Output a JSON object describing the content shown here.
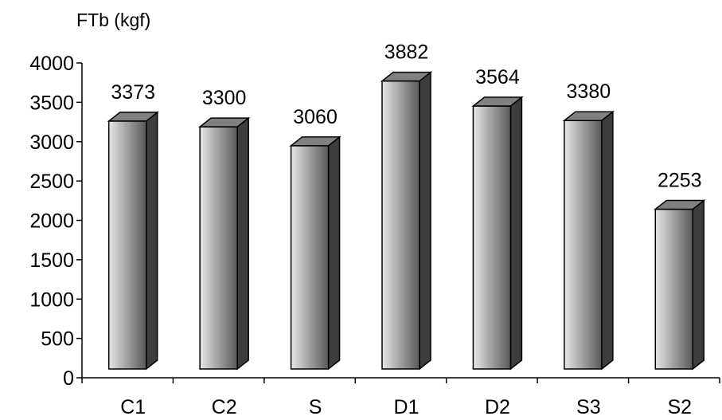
{
  "chart_data": {
    "type": "bar",
    "ylabel": "FTb (kgf)",
    "categories": [
      "C1",
      "C2",
      "S",
      "D1",
      "D2",
      "S3",
      "S2"
    ],
    "values": [
      3373,
      3300,
      3060,
      3882,
      3564,
      3380,
      2253
    ],
    "data_labels": [
      "3373",
      "3300",
      "3060",
      "3882",
      "3564",
      "3380",
      "2253"
    ],
    "yticks": [
      "0",
      "500",
      "1000",
      "1500",
      "2000",
      "2500",
      "3000",
      "3500",
      "4000"
    ],
    "ylim": [
      0,
      4000
    ],
    "grid": false,
    "legend": "none",
    "bar_style": "3d-cylinder",
    "colors": {
      "bar_light": "#e6e6e6",
      "bar_mid": "#a6a6a6",
      "bar_dark": "#595959",
      "bar_side": "#3d3d3d",
      "bar_top": "#808080",
      "outline": "#000000",
      "axis": "#000000"
    }
  }
}
